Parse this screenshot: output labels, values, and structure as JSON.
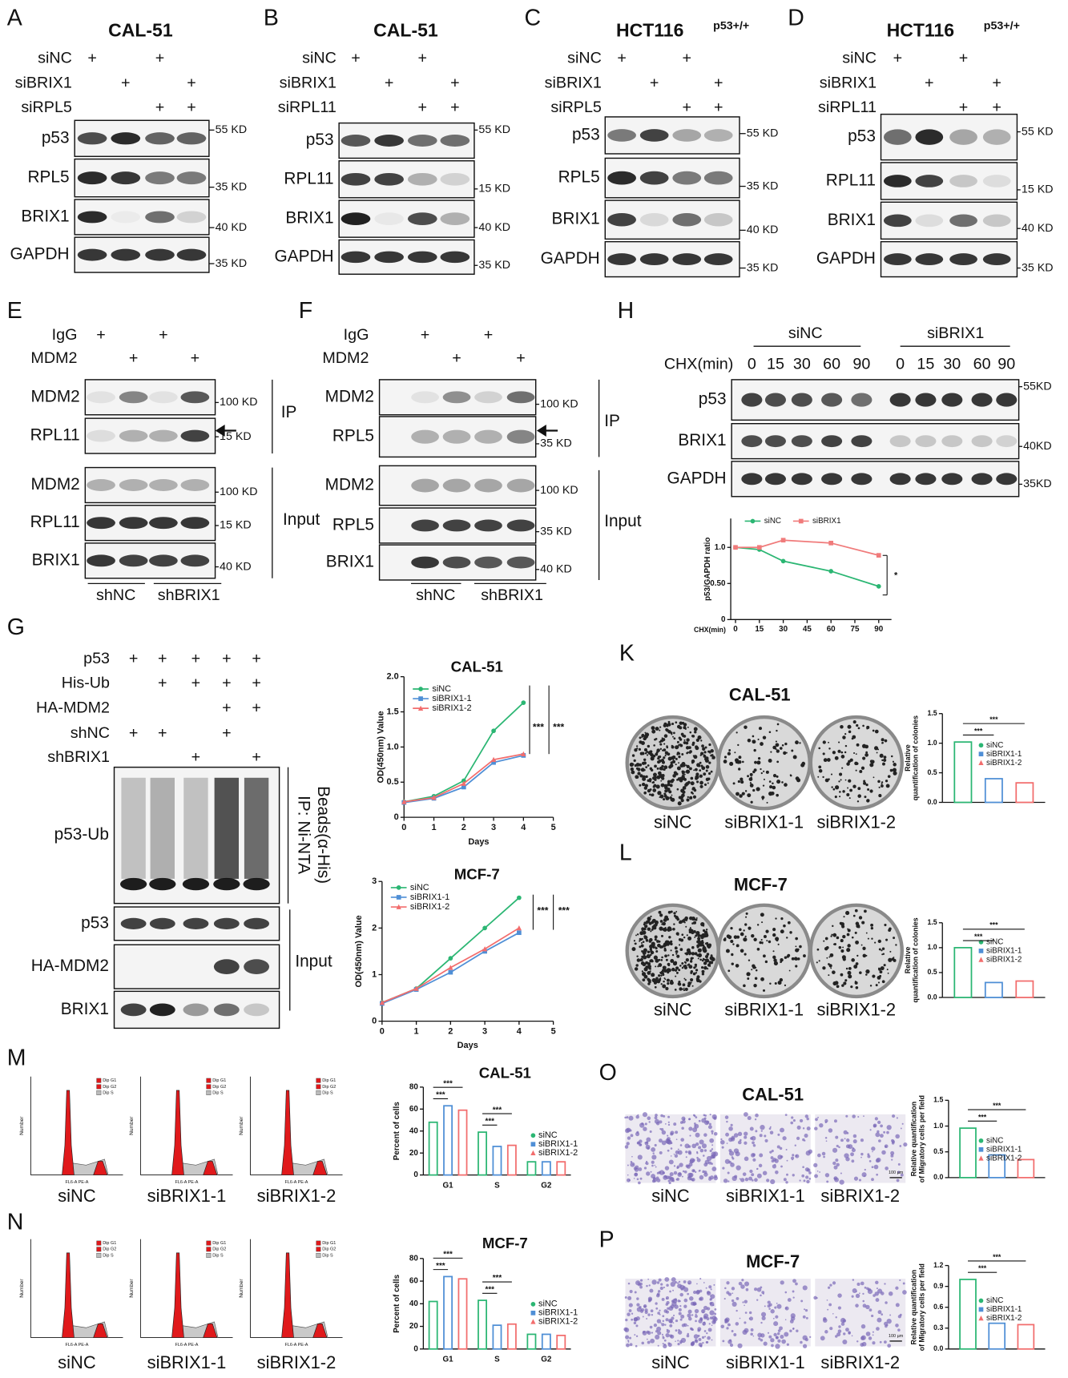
{
  "blot_panels": [
    {
      "letter": "A",
      "title": "CAL-51",
      "conditions": [
        {
          "label": "siNC",
          "signs": [
            "+",
            null,
            "+",
            null
          ]
        },
        {
          "label": "siBRIX1",
          "signs": [
            null,
            "+",
            null,
            "+"
          ]
        },
        {
          "label": "siRPL5",
          "signs": [
            null,
            null,
            "+",
            "+"
          ]
        }
      ],
      "bands": [
        {
          "label": "p53",
          "marker": "55 KD"
        },
        {
          "label": "RPL5",
          "marker": "35 KD"
        },
        {
          "label": "BRIX1",
          "marker": "40 KD"
        },
        {
          "label": "GAPDH",
          "marker": "35 KD"
        }
      ]
    },
    {
      "letter": "B",
      "title": "CAL-51",
      "conditions": [
        {
          "label": "siNC",
          "signs": [
            "+",
            null,
            "+",
            null
          ]
        },
        {
          "label": "siBRIX1",
          "signs": [
            null,
            "+",
            null,
            "+"
          ]
        },
        {
          "label": "siRPL11",
          "signs": [
            null,
            null,
            "+",
            "+"
          ]
        }
      ],
      "bands": [
        {
          "label": "p53",
          "marker": "55 KD"
        },
        {
          "label": "RPL11",
          "marker": "15 KD"
        },
        {
          "label": "BRIX1",
          "marker": "40 KD"
        },
        {
          "label": "GAPDH",
          "marker": "35 KD"
        }
      ]
    },
    {
      "letter": "C",
      "title": "HCT116",
      "title_sup": "p53+/+",
      "conditions": [
        {
          "label": "siNC",
          "signs": [
            "+",
            null,
            "+",
            null
          ]
        },
        {
          "label": "siBRIX1",
          "signs": [
            null,
            "+",
            null,
            "+"
          ]
        },
        {
          "label": "siRPL5",
          "signs": [
            null,
            null,
            "+",
            "+"
          ]
        }
      ],
      "bands": [
        {
          "label": "p53",
          "marker": "55 KD"
        },
        {
          "label": "RPL5",
          "marker": "35 KD"
        },
        {
          "label": "BRIX1",
          "marker": "40 KD"
        },
        {
          "label": "GAPDH",
          "marker": "35 KD"
        }
      ]
    },
    {
      "letter": "D",
      "title": "HCT116",
      "title_sup": "p53+/+",
      "conditions": [
        {
          "label": "siNC",
          "signs": [
            "+",
            null,
            "+",
            null
          ]
        },
        {
          "label": "siBRIX1",
          "signs": [
            null,
            "+",
            null,
            "+"
          ]
        },
        {
          "label": "siRPL11",
          "signs": [
            null,
            null,
            "+",
            "+"
          ]
        }
      ],
      "bands": [
        {
          "label": "p53",
          "marker": "55 KD"
        },
        {
          "label": "RPL11",
          "marker": "15 KD"
        },
        {
          "label": "BRIX1",
          "marker": "40 KD"
        },
        {
          "label": "GAPDH",
          "marker": "35 KD"
        }
      ]
    },
    {
      "letter": "E",
      "conditions": [
        {
          "label": "IgG",
          "signs": [
            "+",
            null,
            "+",
            null
          ]
        },
        {
          "label": "MDM2",
          "signs": [
            null,
            "+",
            null,
            "+"
          ]
        }
      ],
      "bands": [
        {
          "label": "MDM2",
          "marker": "100 KD"
        },
        {
          "label": "RPL11",
          "marker": "15 KD"
        },
        {
          "label": "MDM2",
          "marker": "100 KD"
        },
        {
          "label": "RPL11",
          "marker": "15 KD"
        },
        {
          "label": "BRIX1",
          "marker": "40 KD"
        }
      ],
      "side_labels": [
        [
          "IP"
        ],
        [
          "Input"
        ]
      ],
      "groups": [
        "shNC",
        "shBRIX1"
      ]
    },
    {
      "letter": "F",
      "conditions": [
        {
          "label": "IgG",
          "signs": [
            "+",
            null,
            "+",
            null
          ]
        },
        {
          "label": "MDM2",
          "signs": [
            null,
            "+",
            null,
            "+"
          ]
        }
      ],
      "bands": [
        {
          "label": "MDM2",
          "marker": "100 KD"
        },
        {
          "label": "RPL5",
          "marker": "35 KD"
        },
        {
          "label": "MDM2",
          "marker": "100 KD"
        },
        {
          "label": "RPL5",
          "marker": "35 KD"
        },
        {
          "label": "BRIX1",
          "marker": "40 KD"
        }
      ],
      "side_labels": [
        [
          "IP"
        ],
        [
          "Input"
        ]
      ],
      "groups": [
        "shNC",
        "shBRIX1"
      ]
    },
    {
      "letter": "G",
      "conditions": [
        {
          "label": "p53",
          "signs": [
            "+",
            "+",
            "+",
            "+",
            "+"
          ]
        },
        {
          "label": "His-Ub",
          "signs": [
            null,
            "+",
            "+",
            "+",
            "+"
          ]
        },
        {
          "label": "HA-MDM2",
          "signs": [
            null,
            null,
            null,
            "+",
            "+"
          ]
        },
        {
          "label": "shNC",
          "signs": [
            "+",
            "+",
            null,
            "+",
            null
          ]
        },
        {
          "label": "shBRIX1",
          "signs": [
            null,
            null,
            "+",
            null,
            "+"
          ]
        }
      ],
      "bands": [
        {
          "label": "p53-Ub"
        },
        {
          "label": "p53"
        },
        {
          "label": "HA-MDM2"
        },
        {
          "label": "BRIX1"
        }
      ],
      "side_labels": [
        [
          "IP: Ni-NTA",
          "Beads(α-His)"
        ],
        [
          "Input"
        ]
      ]
    },
    {
      "letter": "H",
      "conditions": [
        {
          "label": "CHX(min)",
          "signs": [
            0,
            15,
            30,
            60,
            90,
            0,
            15,
            30,
            60,
            90
          ]
        }
      ],
      "bands": [
        {
          "label": "p53",
          "marker": "55KD"
        },
        {
          "label": "BRIX1",
          "marker": "40KD"
        },
        {
          "label": "GAPDH",
          "marker": "35KD"
        }
      ],
      "groups": [
        "siNC",
        "siBRIX1"
      ]
    }
  ],
  "image_panels": [
    {
      "letter": "K",
      "title": "CAL-51",
      "samples": [
        "siNC",
        "siBRIX1-1",
        "siBRIX1-2"
      ]
    },
    {
      "letter": "L",
      "title": "MCF-7",
      "samples": [
        "siNC",
        "siBRIX1-1",
        "siBRIX1-2"
      ]
    },
    {
      "letter": "M",
      "samples": [
        "siNC",
        "siBRIX1-1",
        "siBRIX1-2"
      ],
      "ylabel": "Number",
      "xlabel": "FL6-A PE-A",
      "legend": [
        "Dip G1",
        "Dip G2",
        "Dip S"
      ]
    },
    {
      "letter": "N",
      "samples": [
        "siNC",
        "siBRIX1-1",
        "siBRIX1-2"
      ],
      "ylabel": "Number",
      "xlabel": "FL6-A PE-A",
      "legend": [
        "Dip G1",
        "Dip G2",
        "Dip S"
      ]
    },
    {
      "letter": "O",
      "title": "CAL-51",
      "samples": [
        "siNC",
        "siBRIX1-1",
        "siBRIX1-2"
      ],
      "scale_label": "100 µm"
    },
    {
      "letter": "P",
      "title": "MCF-7",
      "samples": [
        "siNC",
        "siBRIX1-1",
        "siBRIX1-2"
      ],
      "scale_label": "100 µm"
    }
  ],
  "chart_data": [
    {
      "type": "line",
      "x": [
        0,
        15,
        30,
        60,
        90
      ],
      "xlim": [
        -3,
        98
      ],
      "xticks": [
        0,
        15,
        30,
        45,
        60,
        75,
        90
      ],
      "ylim": [
        0,
        1.4
      ],
      "yticks": [
        0,
        {
          "value": 0.5,
          "label": "0.50"
        },
        {
          "value": 1,
          "label": "1.0"
        }
      ],
      "xlabel": "CHX(min)",
      "ylabel": "p53/GAPDH ratio",
      "series": [
        {
          "name": "siNC",
          "color": "#2bb673",
          "marker": "circle",
          "values": [
            1,
            0.97,
            0.81,
            0.67,
            0.46
          ]
        },
        {
          "name": "siBRIX1",
          "color": "#f07b7b",
          "marker": "square",
          "values": [
            1,
            1,
            1.1,
            1.06,
            0.89
          ]
        }
      ],
      "annotations": [
        "*"
      ]
    },
    {
      "type": "line",
      "title": "CAL-51",
      "x": [
        0,
        1,
        2,
        3,
        4
      ],
      "xlim": [
        0,
        5
      ],
      "xticks": [
        0,
        1,
        2,
        3,
        4,
        5
      ],
      "ylim": [
        0,
        2
      ],
      "yticks": [
        0,
        0.5,
        {
          "value": 1,
          "label": "1.0"
        },
        1.5,
        {
          "value": 2,
          "label": "2.0"
        }
      ],
      "xlabel": "Days",
      "ylabel": "OD(450nm) Value",
      "series": [
        {
          "name": "siNC",
          "color": "#2bb673",
          "marker": "circle",
          "values": [
            0.22,
            0.3,
            0.52,
            1.23,
            1.63
          ]
        },
        {
          "name": "siBRIX1-1",
          "color": "#4f8fd6",
          "marker": "square",
          "values": [
            0.21,
            0.27,
            0.43,
            0.78,
            0.88
          ]
        },
        {
          "name": "siBRIX1-2",
          "color": "#f26d6d",
          "marker": "triangle",
          "values": [
            0.22,
            0.28,
            0.48,
            0.82,
            0.9
          ]
        }
      ],
      "annotations": [
        "***",
        "***"
      ]
    },
    {
      "type": "line",
      "title": "MCF-7",
      "x": [
        0,
        1,
        2,
        3,
        4
      ],
      "xlim": [
        0,
        5
      ],
      "xticks": [
        0,
        1,
        2,
        3,
        4,
        5
      ],
      "ylim": [
        0,
        3
      ],
      "yticks": [
        0,
        1,
        2,
        3
      ],
      "xlabel": "Days",
      "ylabel": "OD(450nm) Value",
      "series": [
        {
          "name": "siNC",
          "color": "#2bb673",
          "marker": "circle",
          "values": [
            0.4,
            0.7,
            1.35,
            2,
            2.65
          ]
        },
        {
          "name": "siBRIX1-1",
          "color": "#4f8fd6",
          "marker": "square",
          "values": [
            0.38,
            0.68,
            1.05,
            1.5,
            1.9
          ]
        },
        {
          "name": "siBRIX1-2",
          "color": "#f26d6d",
          "marker": "triangle",
          "values": [
            0.4,
            0.7,
            1.15,
            1.55,
            2
          ]
        }
      ],
      "annotations": [
        "***",
        "***"
      ]
    },
    {
      "type": "bar",
      "categories": [
        null
      ],
      "ylim": [
        0,
        1.5
      ],
      "yticks": [
        {
          "value": 0,
          "label": "0.0"
        },
        0.5,
        {
          "value": 1,
          "label": "1.0"
        },
        1.5
      ],
      "ylabel": [
        "Relative",
        "quantification of colonies"
      ],
      "series": [
        {
          "name": "siNC",
          "color": "#2bb673",
          "values": [
            1.02
          ]
        },
        {
          "name": "siBRIX1-1",
          "color": "#4f8fd6",
          "values": [
            0.4
          ]
        },
        {
          "name": "siBRIX1-2",
          "color": "#f26d6d",
          "values": [
            0.33
          ]
        }
      ],
      "annotations": [
        "***",
        "***"
      ]
    },
    {
      "type": "bar",
      "categories": [
        null
      ],
      "ylim": [
        0,
        1.5
      ],
      "yticks": [
        {
          "value": 0,
          "label": "0.0"
        },
        0.5,
        {
          "value": 1,
          "label": "1.0"
        },
        1.5
      ],
      "ylabel": [
        "Relative",
        "quantification of colonies"
      ],
      "series": [
        {
          "name": "siNC",
          "color": "#2bb673",
          "values": [
            1
          ]
        },
        {
          "name": "siBRIX1-1",
          "color": "#4f8fd6",
          "values": [
            0.3
          ]
        },
        {
          "name": "siBRIX1-2",
          "color": "#f26d6d",
          "values": [
            0.33
          ]
        }
      ],
      "annotations": [
        "***",
        "***"
      ]
    },
    {
      "type": "bar",
      "title": "CAL-51",
      "categories": [
        "G1",
        "S",
        "G2"
      ],
      "ylim": [
        0,
        80
      ],
      "yticks": [
        0,
        20,
        40,
        60,
        80
      ],
      "ylabel": [
        "Percent of cells"
      ],
      "series": [
        {
          "name": "siNC",
          "color": "#2bb673",
          "values": [
            48,
            39,
            12
          ]
        },
        {
          "name": "siBRIX1-1",
          "color": "#4f8fd6",
          "values": [
            63,
            26,
            12
          ]
        },
        {
          "name": "siBRIX1-2",
          "color": "#f26d6d",
          "values": [
            59,
            27,
            12
          ]
        }
      ],
      "annotations": [
        "***",
        "***",
        "***",
        "***"
      ]
    },
    {
      "type": "bar",
      "title": "MCF-7",
      "categories": [
        "G1",
        "S",
        "G2"
      ],
      "ylim": [
        0,
        80
      ],
      "yticks": [
        0,
        20,
        40,
        60,
        80
      ],
      "ylabel": [
        "Percent of cells"
      ],
      "series": [
        {
          "name": "siNC",
          "color": "#2bb673",
          "values": [
            42,
            43,
            13
          ]
        },
        {
          "name": "siBRIX1-1",
          "color": "#4f8fd6",
          "values": [
            64,
            21,
            13
          ]
        },
        {
          "name": "siBRIX1-2",
          "color": "#f26d6d",
          "values": [
            62,
            22,
            12
          ]
        }
      ],
      "annotations": [
        "***",
        "***",
        "***",
        "***"
      ]
    },
    {
      "type": "bar",
      "categories": [
        null
      ],
      "ylim": [
        0,
        1.5
      ],
      "yticks": [
        {
          "value": 0,
          "label": "0.0"
        },
        0.5,
        {
          "value": 1,
          "label": "1.0"
        },
        1.5
      ],
      "ylabel": [
        "Relative quantification",
        "of Migratory cells per field"
      ],
      "series": [
        {
          "name": "siNC",
          "color": "#2bb673",
          "values": [
            0.96
          ]
        },
        {
          "name": "siBRIX1-1",
          "color": "#4f8fd6",
          "values": [
            0.44
          ]
        },
        {
          "name": "siBRIX1-2",
          "color": "#f26d6d",
          "values": [
            0.35
          ]
        }
      ],
      "annotations": [
        "***",
        "***"
      ]
    },
    {
      "type": "bar",
      "categories": [
        null
      ],
      "ylim": [
        0,
        1.2
      ],
      "yticks": [
        {
          "value": 0,
          "label": "0.0"
        },
        0.3,
        0.6,
        0.9,
        1.2
      ],
      "ylabel": [
        "Relative quantification",
        "of Migratory cells per field"
      ],
      "series": [
        {
          "name": "siNC",
          "color": "#2bb673",
          "values": [
            1
          ]
        },
        {
          "name": "siBRIX1-1",
          "color": "#4f8fd6",
          "values": [
            0.37
          ]
        },
        {
          "name": "siBRIX1-2",
          "color": "#f26d6d",
          "values": [
            0.35
          ]
        }
      ],
      "annotations": [
        "***",
        "***"
      ]
    }
  ]
}
